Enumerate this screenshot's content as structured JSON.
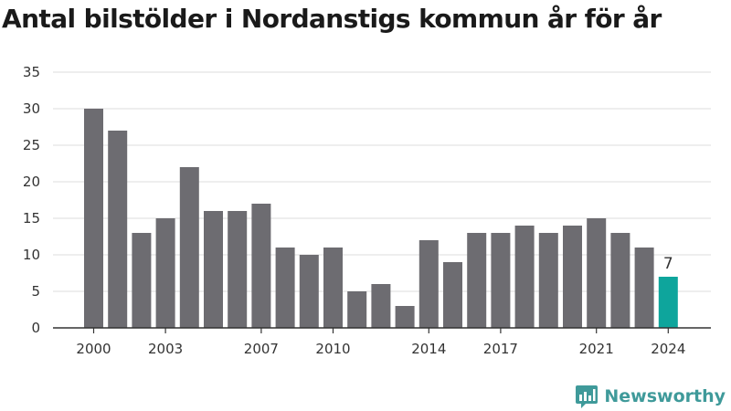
{
  "title": "Antal bilstölder i Nordanstigs kommun år för år",
  "brand": {
    "name": "Newsworthy",
    "icon": "newsworthy-logo-icon",
    "color": "#3f9a9a"
  },
  "colors": {
    "bar": "#6d6c71",
    "highlight": "#0ea59c",
    "grid": "#dddddd",
    "axis": "#333333"
  },
  "chart_data": {
    "type": "bar",
    "title": "Antal bilstölder i Nordanstigs kommun år för år",
    "xlabel": "",
    "ylabel": "",
    "categories": [
      "2000",
      "2001",
      "2002",
      "2003",
      "2004",
      "2005",
      "2006",
      "2007",
      "2008",
      "2009",
      "2010",
      "2011",
      "2012",
      "2013",
      "2014",
      "2015",
      "2016",
      "2017",
      "2018",
      "2019",
      "2020",
      "2021",
      "2022",
      "2023",
      "2024"
    ],
    "values": [
      30,
      27,
      13,
      15,
      22,
      16,
      16,
      17,
      11,
      10,
      11,
      5,
      6,
      3,
      12,
      9,
      13,
      13,
      14,
      13,
      14,
      15,
      13,
      11,
      7
    ],
    "xticks": [
      "2000",
      "2003",
      "2007",
      "2010",
      "2014",
      "2017",
      "2021",
      "2024"
    ],
    "yticks": [
      0,
      5,
      10,
      15,
      20,
      25,
      30,
      35
    ],
    "ylim": [
      0,
      35
    ],
    "highlight": {
      "category": "2024",
      "label": "7"
    },
    "grid": true,
    "legend": "none"
  }
}
